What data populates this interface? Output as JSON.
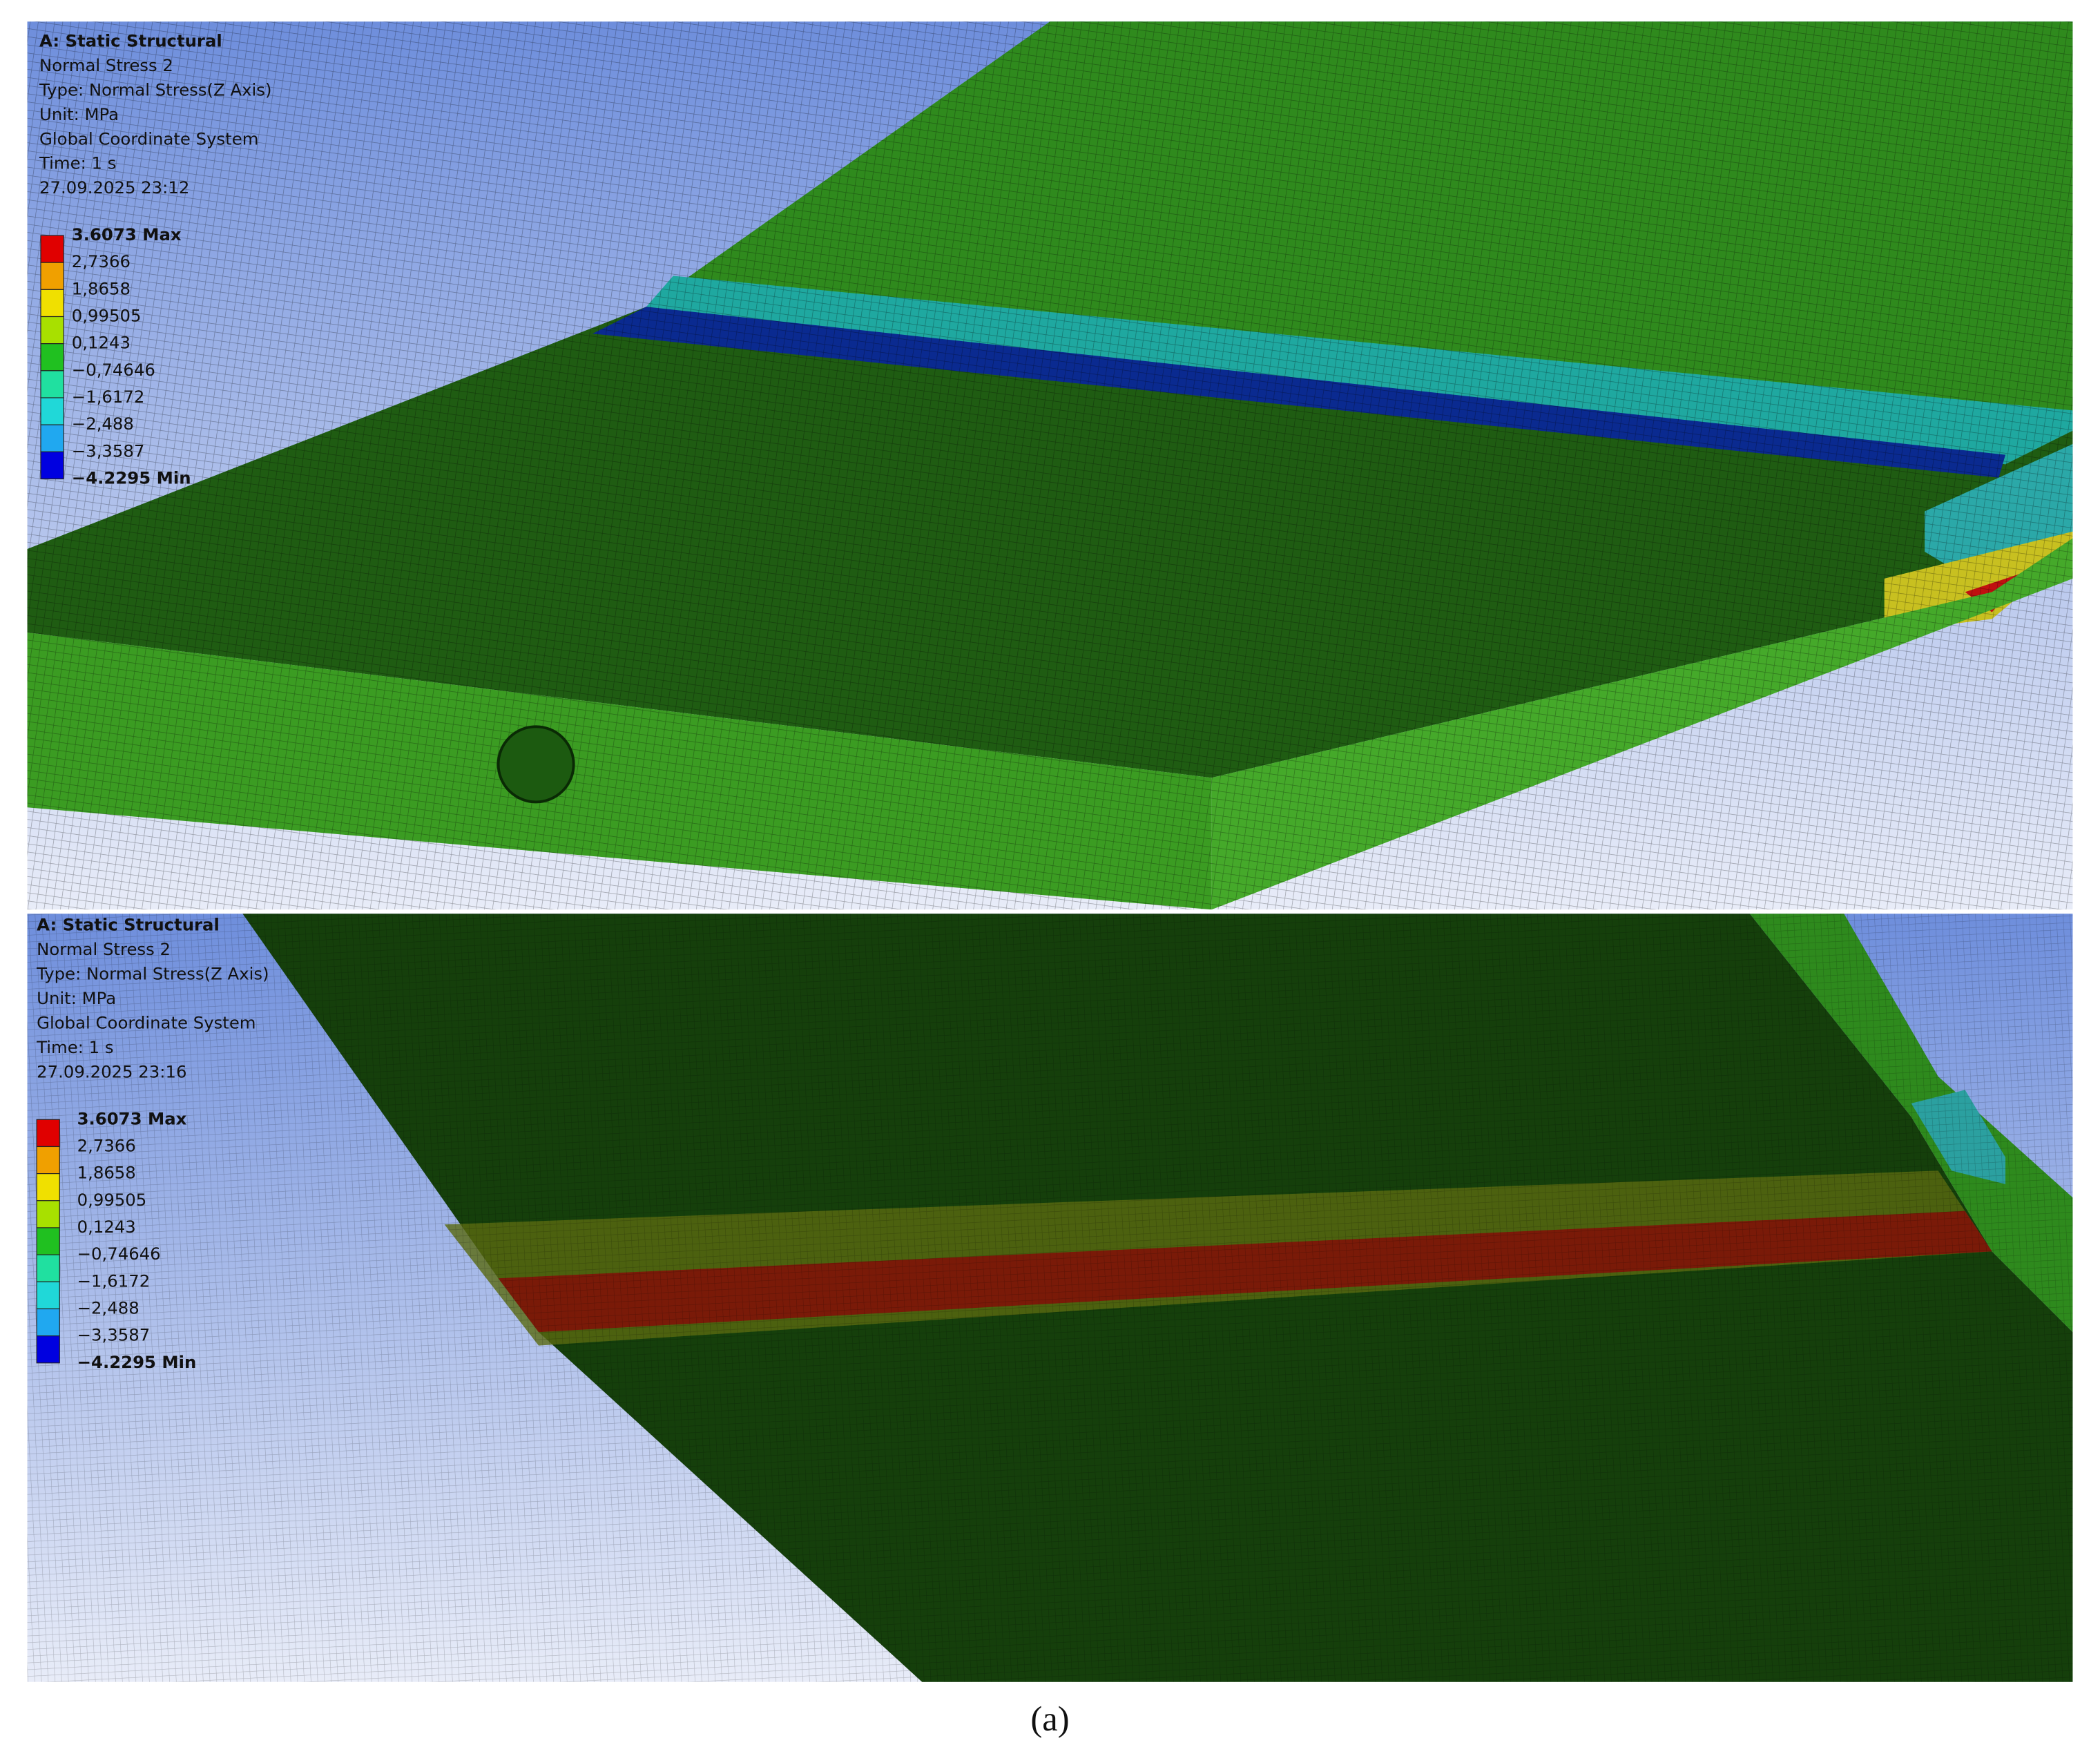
{
  "panels": [
    {
      "header": [
        "A: Static Structural",
        "Normal Stress 2",
        "Type: Normal Stress(Z Axis)",
        "Unit: MPa",
        "Global Coordinate System",
        "Time: 1 s",
        "27.09.2025 23:12"
      ],
      "legend": [
        "3.6073 Max",
        "2,7366",
        "1,8658",
        "0,99505",
        "0,1243",
        "−0,74646",
        "−1,6172",
        "−2,488",
        "−3,3587",
        "−4.2295 Min"
      ]
    },
    {
      "header": [
        "A: Static Structural",
        "Normal Stress 2",
        "Type: Normal Stress(Z Axis)",
        "Unit: MPa",
        "Global Coordinate System",
        "Time: 1 s",
        "27.09.2025 23:16"
      ],
      "legend": [
        "3.6073 Max",
        "2,7366",
        "1,8658",
        "0,99505",
        "0,1243",
        "−0,74646",
        "−1,6172",
        "−2,488",
        "−3,3587",
        "−4.2295 Min"
      ]
    }
  ],
  "caption": "(a)"
}
